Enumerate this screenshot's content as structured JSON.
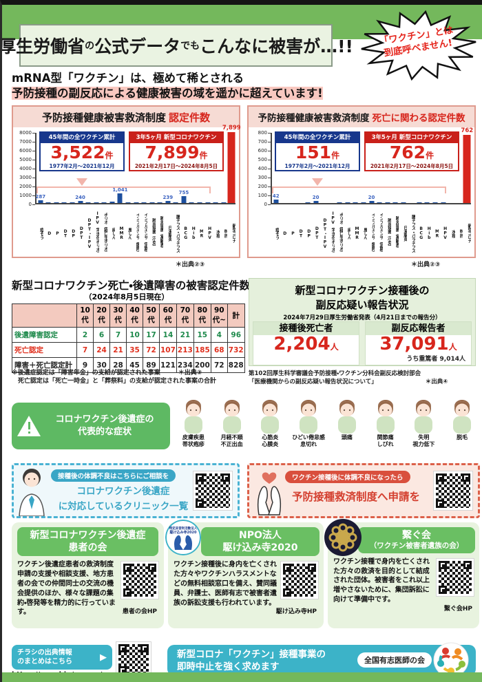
{
  "page": {
    "t1": "厚生労働省",
    "t2": "の",
    "t3": "公式データ",
    "t4": "でも",
    "t5": "こんなに被害が…!!",
    "burst1": "「ワクチン」とは",
    "burst2": "到底呼べません!",
    "intro1": "mRNA型「ワクチン」は、極めて稀とされる",
    "intro2": "予防接種の副反応による健康被害の域を遥かに超えています!"
  },
  "panels": [
    {
      "title_main": "予防接種健康被害救済制度",
      "title_accent": "認定件数",
      "box_blue": {
        "label": "45年間の全ワクチン累計",
        "value": "3,522",
        "unit": "件",
        "period": "1977年2月～2021年12月"
      },
      "box_red": {
        "label": "3年5ヶ月 新型コロナワクチン",
        "value": "7,899",
        "unit": "件",
        "period": "2021年2月17日～2024年8月5日"
      },
      "source": "＊出典②③"
    },
    {
      "title_main": "予防接種健康被害救済制度",
      "title_accent": "死亡に関わる認定件数",
      "box_blue": {
        "label": "45年間の全ワクチン累計",
        "value": "151",
        "unit": "件",
        "period": "1977年2月～2021年12月"
      },
      "box_red": {
        "label": "3年5ヶ月 新型コロナワクチン",
        "value": "762",
        "unit": "件",
        "period": "2021年2月17日～2024年8月5日"
      },
      "source": "＊出典②③"
    }
  ],
  "chart_data": [
    {
      "type": "bar",
      "title": "予防接種健康被害救済制度 認定件数",
      "categories": [
        "痘そう",
        "D",
        "P",
        "DT",
        "DP",
        "DPT",
        "DPT・IPV",
        "IPV（不活化ポリオ）",
        "ポリオ（経口生ポリオ）",
        "麻しん",
        "MMR",
        "風しん",
        "インフルエンザ（臨時）",
        "インフルエンザ（定期）",
        "肺炎球菌（小児）",
        "肺炎球菌（高齢者）",
        "日本脳炎",
        "腸チフス・パラチフス",
        "BCG",
        "Hib",
        "MR",
        "HPV",
        "水痘",
        "B肝",
        "新型コロナ"
      ],
      "values": [
        287,
        5,
        5,
        10,
        30,
        240,
        10,
        5,
        90,
        120,
        1041,
        60,
        70,
        30,
        30,
        20,
        239,
        10,
        755,
        30,
        80,
        30,
        10,
        10,
        7899
      ],
      "labeled": {
        "0": "287",
        "5": "240",
        "10": "1,041",
        "16": "239",
        "18": "755",
        "24": "7,899"
      },
      "ylim": [
        0,
        8000
      ],
      "ytick_step": 1000,
      "ylabel": "",
      "xlabel": "",
      "bar_color": "#1d4f9e",
      "highlight_index": 24,
      "highlight_color": "#d7261d",
      "legend": "none",
      "grid": false
    },
    {
      "type": "bar",
      "title": "予防接種健康被害救済制度 死亡に関わる認定件数",
      "categories": [
        "痘そう",
        "D",
        "P",
        "DT",
        "DP",
        "DPT",
        "DPT・IPV",
        "IPV（不活化ポリオ）",
        "ポリオ（経口生ポリオ）",
        "麻しん",
        "MMR",
        "風しん",
        "インフルエンザ（臨時）",
        "インフルエンザ（定期）",
        "肺炎球菌（小児）",
        "肺炎球菌（高齢者）",
        "日本脳炎",
        "腸チフス・パラチフス",
        "BCG",
        "Hib",
        "MR",
        "HPV",
        "水痘",
        "B肝",
        "新型コロナ"
      ],
      "values": [
        42,
        0,
        0,
        0,
        5,
        20,
        0,
        0,
        4,
        8,
        3,
        3,
        20,
        5,
        3,
        3,
        8,
        0,
        3,
        3,
        3,
        3,
        0,
        0,
        762
      ],
      "labeled": {
        "0": "42",
        "5": "20",
        "12": "20",
        "24": "762"
      },
      "ylim": [
        0,
        800
      ],
      "ytick_step": 100,
      "ylabel": "",
      "xlabel": "",
      "bar_color": "#1d4f9e",
      "highlight_index": 24,
      "highlight_color": "#d7261d",
      "legend": "none",
      "grid": false
    }
  ],
  "table": {
    "title": "新型コロナワクチン死亡・後遺障害の被害認定件数",
    "subtitle": "（2024年8月5日現在）",
    "col_headers": [
      "",
      "10代",
      "20代",
      "30代",
      "40代",
      "50代",
      "60代",
      "70代",
      "80代",
      "90代~",
      "計"
    ],
    "rows": [
      {
        "label": "後遺障害認定",
        "color": "c-green",
        "cells": [
          "2",
          "6",
          "7",
          "10",
          "17",
          "14",
          "21",
          "15",
          "4",
          "96"
        ]
      },
      {
        "label": "死亡認定",
        "color": "c-red",
        "cells": [
          "7",
          "24",
          "21",
          "35",
          "72",
          "107",
          "213",
          "185",
          "68",
          "732"
        ]
      },
      {
        "label": "障害＋死亡認定計",
        "color": "c-black",
        "cells": [
          "9",
          "30",
          "28",
          "45",
          "89",
          "121",
          "234",
          "200",
          "72",
          "828"
        ]
      }
    ],
    "note1": "※後遺症認定は「障害年金」の支給が認定された事案",
    "note2": "　死亡認定は「死亡一時金」と「葬祭料」の支給が認定された事案の合計",
    "source": "＊出典③"
  },
  "report": {
    "title1": "新型コロナワクチン接種後の",
    "title2": "副反応疑い報告状況",
    "subtitle": "2024年7月29日厚生労働省発表（4月21日までの報告分）",
    "stats": [
      {
        "label": "接種後死亡者",
        "value": "2,204",
        "unit": "人",
        "sub": ""
      },
      {
        "label": "副反応報告者",
        "value": "37,091",
        "unit": "人",
        "sub": "うち重篤者 9,014人"
      }
    ],
    "note1": "第102回厚生科学審議会予防接種・ワクチン分科会副反応検討部会",
    "note2": "「医療機関からの副反応疑い報告状況について」",
    "source": "＊出典④"
  },
  "symptoms": {
    "banner1": "コロナワクチン後遺症の",
    "banner2": "代表的な症状",
    "items": [
      {
        "l1": "皮膚疾患",
        "l2": "帯状疱疹"
      },
      {
        "l1": "月経不順",
        "l2": "不正出血"
      },
      {
        "l1": "心筋炎",
        "l2": "心膜炎"
      },
      {
        "l1": "ひどい倦怠感",
        "l2": "息切れ"
      },
      {
        "l1": "頭痛",
        "l2": ""
      },
      {
        "l1": "関節痛",
        "l2": "しびれ"
      },
      {
        "l1": "失明",
        "l2": "視力低下"
      },
      {
        "l1": "脱毛",
        "l2": ""
      }
    ]
  },
  "consult": {
    "pill": "接種後の体調不良はこちらにご相談を",
    "line1": "コロナワクチン後遺症",
    "line2": "に対応しているクリニック一覧"
  },
  "apply": {
    "pill": "ワクチン接種後に体調不良になったら",
    "line": "予防接種救済制度へ申請を"
  },
  "cards": [
    {
      "title1": "新型コロナワクチン後遺症",
      "title2": "患者の会",
      "body": "ワクチン後遺症患者の救済制度申請の支援や相談支援、地方患者の会での仲間同士の交流の機会提供のほか、様々な課題の集約・啓発等を精力的に行っています。",
      "qr_caption": "患者の会HP"
    },
    {
      "title1": "NPO法人",
      "title2": "駆け込み寺2020",
      "logo_text1": "特定非営利活動法人",
      "logo_text2": "駆け込み寺2020",
      "body": "ワクチン接種後に身内を亡くされた方々やワクチンハラスメントなどの無料相談窓口を備え、賛同議員、弁護士、医師有志で被害者遺族の訴訟支援も行われています。",
      "qr_caption": "駆け込み寺HP"
    },
    {
      "title1": "繋ぐ会",
      "title2": "（ワクチン被害者遺族の会）",
      "body": "ワクチン接種で身内を亡くされた方々の救済を目的として結成された団体。被害者をこれ以上増やさないために、集団訴訟に向けて準備中です。",
      "qr_caption": "繋ぐ会HP"
    }
  ],
  "footer": {
    "src1": "チラシの出典情報",
    "src2": "のまとめはこちら",
    "arrow": "▶",
    "url": "https://vmed.jp/source/",
    "demand1": "新型コロナ「ワクチン」接種事業の",
    "demand2": "即時中止を強く求めます",
    "org": "全国有志医師の会"
  },
  "colors": {
    "band_green": "#74b85c",
    "accent_red": "#d7261d",
    "bar_blue": "#1d4f9e",
    "deep_blue": "#17378c",
    "teal": "#3cb3c8",
    "card_green": "#6abf63"
  }
}
